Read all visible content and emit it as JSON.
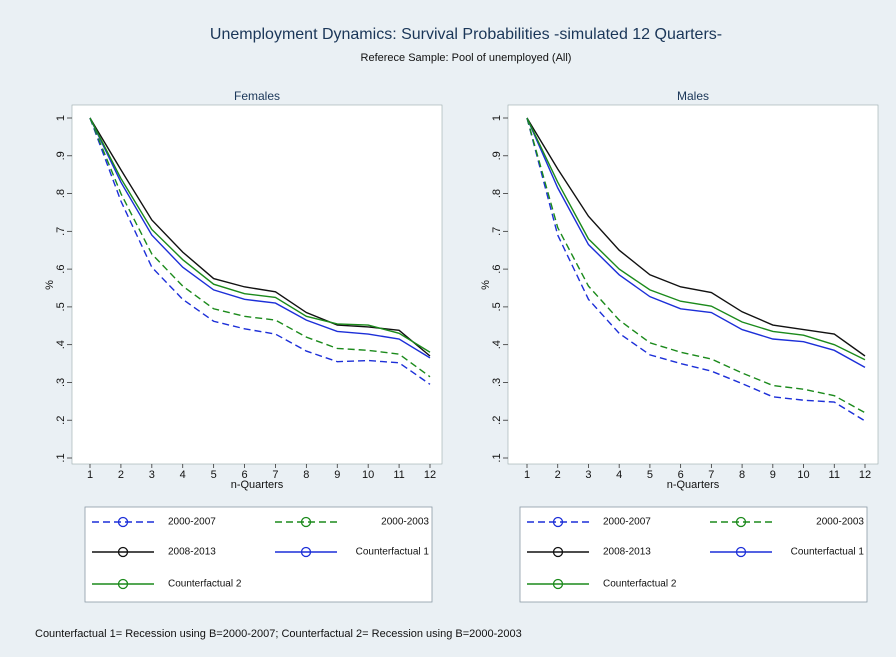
{
  "title": "Unemployment Dynamics: Survival Probabilities -simulated 12 Quarters-",
  "subtitle": "Referece Sample: Pool of unemployed (All)",
  "note": "Counterfactual 1= Recession using B=2000-2007; Counterfactual 2= Recession using B=2000-2003",
  "chart_data": [
    {
      "type": "line",
      "title": "Females",
      "xlabel": "n-Quarters",
      "ylabel": "%",
      "x": [
        1,
        2,
        3,
        4,
        5,
        6,
        7,
        8,
        9,
        10,
        11,
        12
      ],
      "xlim": [
        1,
        12
      ],
      "xticks": [
        1,
        2,
        3,
        4,
        5,
        6,
        7,
        8,
        9,
        10,
        11,
        12
      ],
      "ylim": [
        0.1,
        1
      ],
      "yticks": [
        {
          "value": 0.1,
          "label": ".1"
        },
        {
          "value": 0.2,
          "label": ".2"
        },
        {
          "value": 0.3,
          "label": ".3"
        },
        {
          "value": 0.4,
          "label": ".4"
        },
        {
          "value": 0.5,
          "label": ".5"
        },
        {
          "value": 0.6,
          "label": ".6"
        },
        {
          "value": 0.7,
          "label": ".7"
        },
        {
          "value": 0.8,
          "label": ".8"
        },
        {
          "value": 0.9,
          "label": ".9"
        },
        1
      ],
      "legend": "bottom",
      "series": [
        {
          "name": "2000-2007",
          "color": "#1c2fd8",
          "style": "dashed",
          "values": [
            1,
            0.78,
            0.605,
            0.52,
            0.462,
            0.442,
            0.428,
            0.383,
            0.355,
            0.358,
            0.352,
            0.295
          ]
        },
        {
          "name": "2000-2003",
          "color": "#1b8a1b",
          "style": "dashed",
          "values": [
            1,
            0.8,
            0.64,
            0.555,
            0.495,
            0.475,
            0.465,
            0.42,
            0.39,
            0.385,
            0.375,
            0.315
          ]
        },
        {
          "name": "2008-2013",
          "color": "#111111",
          "style": "solid",
          "values": [
            1,
            0.863,
            0.73,
            0.645,
            0.575,
            0.553,
            0.54,
            0.485,
            0.452,
            0.447,
            0.438,
            0.37
          ]
        },
        {
          "name": "Counterfactual 1",
          "color": "#1c2fd8",
          "style": "solid",
          "values": [
            1,
            0.83,
            0.69,
            0.605,
            0.545,
            0.52,
            0.51,
            0.465,
            0.435,
            0.428,
            0.415,
            0.365
          ]
        },
        {
          "name": "Counterfactual 2",
          "color": "#1b8a1b",
          "style": "solid",
          "values": [
            1,
            0.84,
            0.705,
            0.625,
            0.56,
            0.535,
            0.525,
            0.475,
            0.455,
            0.452,
            0.43,
            0.38
          ]
        }
      ]
    },
    {
      "type": "line",
      "title": "Males",
      "xlabel": "n-Quarters",
      "ylabel": "%",
      "x": [
        1,
        2,
        3,
        4,
        5,
        6,
        7,
        8,
        9,
        10,
        11,
        12
      ],
      "xlim": [
        1,
        12
      ],
      "xticks": [
        1,
        2,
        3,
        4,
        5,
        6,
        7,
        8,
        9,
        10,
        11,
        12
      ],
      "ylim": [
        0.1,
        1
      ],
      "yticks": [
        {
          "value": 0.1,
          "label": ".1"
        },
        {
          "value": 0.2,
          "label": ".2"
        },
        {
          "value": 0.3,
          "label": ".3"
        },
        {
          "value": 0.4,
          "label": ".4"
        },
        {
          "value": 0.5,
          "label": ".5"
        },
        {
          "value": 0.6,
          "label": ".6"
        },
        {
          "value": 0.7,
          "label": ".7"
        },
        {
          "value": 0.8,
          "label": ".8"
        },
        {
          "value": 0.9,
          "label": ".9"
        },
        1
      ],
      "legend": "bottom",
      "series": [
        {
          "name": "2000-2007",
          "color": "#1c2fd8",
          "style": "dashed",
          "values": [
            1,
            0.69,
            0.52,
            0.43,
            0.373,
            0.35,
            0.33,
            0.297,
            0.262,
            0.253,
            0.248,
            0.198
          ]
        },
        {
          "name": "2000-2003",
          "color": "#1b8a1b",
          "style": "dashed",
          "values": [
            1,
            0.71,
            0.555,
            0.465,
            0.405,
            0.38,
            0.362,
            0.325,
            0.292,
            0.282,
            0.265,
            0.22
          ]
        },
        {
          "name": "2008-2013",
          "color": "#111111",
          "style": "solid",
          "values": [
            1,
            0.865,
            0.74,
            0.65,
            0.585,
            0.553,
            0.538,
            0.487,
            0.452,
            0.44,
            0.428,
            0.37
          ]
        },
        {
          "name": "Counterfactual 1",
          "color": "#1c2fd8",
          "style": "solid",
          "values": [
            1,
            0.815,
            0.665,
            0.585,
            0.527,
            0.495,
            0.485,
            0.44,
            0.415,
            0.408,
            0.385,
            0.34
          ]
        },
        {
          "name": "Counterfactual 2",
          "color": "#1b8a1b",
          "style": "solid",
          "values": [
            1,
            0.83,
            0.68,
            0.6,
            0.545,
            0.515,
            0.502,
            0.46,
            0.435,
            0.425,
            0.4,
            0.36
          ]
        }
      ]
    }
  ]
}
